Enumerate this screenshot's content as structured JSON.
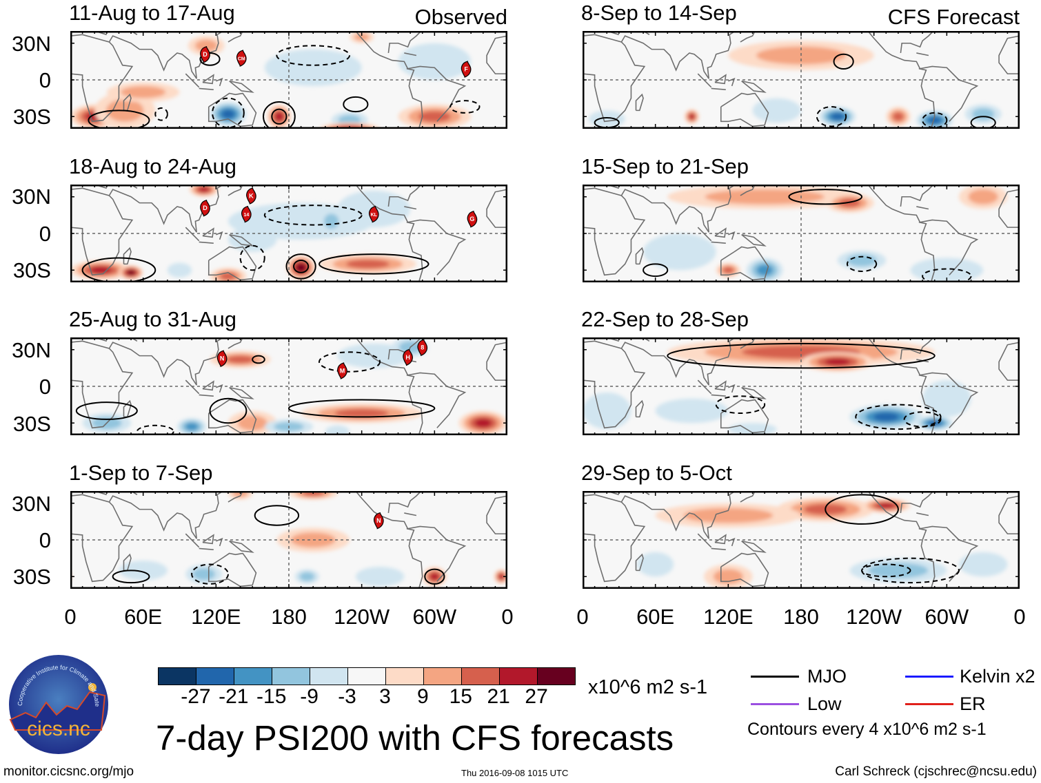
{
  "main_title": "7-day PSI200 with CFS forecasts",
  "units": "x10^6 m2 s-1",
  "contours_note": "Contours every 4 x10^6 m2 s-1",
  "footer": {
    "url": "monitor.cicsnc.org/mjo",
    "timestamp": "Thu 2016-09-08 1015 UTC",
    "author": "Carl Schreck (cjschrec@ncsu.edu)"
  },
  "logo": {
    "text": "cics.nc",
    "arc_text": "Cooperative Institute for Climate and Satellites"
  },
  "legend": [
    {
      "label": "MJO",
      "color": "#000000"
    },
    {
      "label": "Kelvin x2",
      "color": "#1a1aff"
    },
    {
      "label": "Low",
      "color": "#9b4fe0"
    },
    {
      "label": "ER",
      "color": "#e0201b"
    }
  ],
  "colorbar": {
    "colors": [
      "#0b3563",
      "#2166ac",
      "#4393c3",
      "#92c5de",
      "#d1e5f0",
      "#f7f7f7",
      "#fddbc7",
      "#f4a582",
      "#d6604d",
      "#b2182b",
      "#67001f"
    ],
    "labels": [
      "-27",
      "-21",
      "-15",
      "-9",
      "-3",
      "3",
      "9",
      "15",
      "21",
      "27"
    ]
  },
  "axes": {
    "lat_labels": [
      "30N",
      "0",
      "30S"
    ],
    "lon_labels": [
      "0",
      "60E",
      "120E",
      "180",
      "120W",
      "60W",
      "0"
    ]
  },
  "chart_data": {
    "type": "map",
    "variable": "200-hPa streamfunction anomaly (x10^6 m2 s-1)",
    "lon_range": [
      0,
      360
    ],
    "lat_range": [
      -40,
      40
    ],
    "panels": [
      {
        "title": "11-Aug to 17-Aug",
        "tag": "Observed",
        "blobs": [
          [
            20,
            -30,
            25,
            20,
            10
          ],
          [
            45,
            -25,
            12,
            25,
            15
          ],
          [
            130,
            -28,
            -27,
            15,
            10
          ],
          [
            172,
            -30,
            21,
            10,
            10
          ],
          [
            230,
            -33,
            -15,
            15,
            7
          ],
          [
            300,
            -30,
            15,
            30,
            10
          ],
          [
            230,
            -40,
            21,
            25,
            5
          ],
          [
            112,
            28,
            12,
            15,
            8
          ],
          [
            200,
            10,
            -9,
            40,
            15
          ],
          [
            300,
            15,
            -9,
            30,
            15
          ],
          [
            60,
            -10,
            9,
            30,
            8
          ],
          [
            240,
            35,
            9,
            10,
            5
          ]
        ],
        "contours": [
          [
            115,
            17,
            8,
            5,
            1
          ],
          [
            172,
            -30,
            13,
            12,
            1
          ],
          [
            172,
            -30,
            6,
            6,
            1
          ],
          [
            130,
            -27,
            13,
            12,
            -1
          ],
          [
            235,
            -20,
            10,
            6,
            1
          ],
          [
            325,
            -22,
            12,
            5,
            -1
          ],
          [
            40,
            -33,
            25,
            8,
            1
          ],
          [
            75,
            -28,
            5,
            5,
            -1
          ],
          [
            200,
            20,
            30,
            8,
            -1
          ]
        ],
        "storms": [
          {
            "lon": 111,
            "lat": 21,
            "label": "D"
          },
          {
            "lon": 141,
            "lat": 18,
            "label": "CM"
          },
          {
            "lon": 326,
            "lat": 9,
            "label": "F"
          }
        ]
      },
      {
        "title": "18-Aug to 24-Aug",
        "tag": "",
        "blobs": [
          [
            25,
            -30,
            21,
            25,
            8
          ],
          [
            50,
            -32,
            27,
            10,
            6
          ],
          [
            130,
            -35,
            15,
            15,
            7
          ],
          [
            190,
            -28,
            27,
            12,
            10
          ],
          [
            245,
            -25,
            15,
            40,
            8
          ],
          [
            190,
            10,
            -9,
            60,
            15
          ],
          [
            250,
            20,
            -9,
            30,
            15
          ],
          [
            110,
            36,
            21,
            12,
            6
          ],
          [
            150,
            -5,
            -9,
            20,
            10
          ],
          [
            215,
            10,
            -15,
            10,
            10
          ],
          [
            90,
            -30,
            -9,
            10,
            6
          ]
        ],
        "contours": [
          [
            40,
            -30,
            30,
            10,
            1
          ],
          [
            190,
            -27,
            12,
            10,
            1
          ],
          [
            190,
            -27,
            6,
            5,
            1
          ],
          [
            250,
            -25,
            45,
            8,
            1
          ],
          [
            200,
            15,
            40,
            8,
            -1
          ],
          [
            150,
            -20,
            10,
            10,
            -1
          ]
        ],
        "storms": [
          {
            "lon": 111,
            "lat": 21,
            "label": "D"
          },
          {
            "lon": 149,
            "lat": 31,
            "label": "K"
          },
          {
            "lon": 145,
            "lat": 16,
            "label": "14"
          },
          {
            "lon": 250,
            "lat": 16,
            "label": "KL"
          },
          {
            "lon": 331,
            "lat": 12,
            "label": "G"
          }
        ]
      },
      {
        "title": "25-Aug to 31-Aug",
        "tag": "",
        "blobs": [
          [
            30,
            -30,
            -15,
            20,
            8
          ],
          [
            100,
            -33,
            -21,
            12,
            7
          ],
          [
            150,
            -30,
            9,
            20,
            10
          ],
          [
            180,
            -33,
            -15,
            20,
            6
          ],
          [
            240,
            -22,
            15,
            50,
            8
          ],
          [
            340,
            -30,
            21,
            20,
            10
          ],
          [
            140,
            22,
            15,
            25,
            7
          ],
          [
            250,
            25,
            -9,
            30,
            10
          ],
          [
            280,
            32,
            -15,
            15,
            8
          ],
          [
            220,
            -37,
            -9,
            10,
            5
          ]
        ],
        "contours": [
          [
            30,
            -20,
            25,
            7,
            1
          ],
          [
            130,
            -20,
            15,
            10,
            1
          ],
          [
            240,
            -18,
            60,
            7,
            1
          ],
          [
            70,
            -37,
            15,
            5,
            -1
          ],
          [
            230,
            20,
            25,
            8,
            -1
          ],
          [
            155,
            22,
            5,
            3,
            1
          ]
        ],
        "storms": [
          {
            "lon": 125,
            "lat": 23,
            "label": "N"
          },
          {
            "lon": 224,
            "lat": 13,
            "label": "M"
          },
          {
            "lon": 278,
            "lat": 24,
            "label": "H"
          },
          {
            "lon": 290,
            "lat": 32,
            "label": "8"
          }
        ]
      },
      {
        "title": "1-Sep to 7-Sep",
        "tag": "",
        "blobs": [
          [
            200,
            38,
            15,
            20,
            5
          ],
          [
            140,
            38,
            9,
            10,
            5
          ],
          [
            110,
            -28,
            -15,
            15,
            8
          ],
          [
            195,
            -30,
            -15,
            10,
            6
          ],
          [
            300,
            -30,
            21,
            10,
            8
          ],
          [
            355,
            -30,
            21,
            6,
            6
          ],
          [
            200,
            0,
            9,
            30,
            10
          ],
          [
            60,
            -25,
            -9,
            20,
            8
          ],
          [
            255,
            -30,
            -9,
            20,
            8
          ]
        ],
        "contours": [
          [
            170,
            20,
            18,
            8,
            1
          ],
          [
            300,
            -30,
            8,
            6,
            1
          ],
          [
            115,
            -28,
            15,
            8,
            -1
          ],
          [
            50,
            -30,
            15,
            5,
            1
          ]
        ],
        "storms": [
          {
            "lon": 254,
            "lat": 16,
            "label": "N"
          }
        ]
      },
      {
        "title": "8-Sep to 14-Sep",
        "tag": "CFS Forecast",
        "blobs": [
          [
            90,
            -30,
            21,
            6,
            6
          ],
          [
            160,
            -25,
            -9,
            20,
            10
          ],
          [
            210,
            -30,
            -27,
            15,
            8
          ],
          [
            290,
            -33,
            -27,
            15,
            8
          ],
          [
            330,
            -28,
            -15,
            15,
            8
          ],
          [
            180,
            20,
            9,
            60,
            12
          ],
          [
            250,
            -5,
            -3,
            40,
            10
          ],
          [
            20,
            -32,
            -9,
            15,
            7
          ],
          [
            260,
            -30,
            15,
            10,
            8
          ]
        ],
        "contours": [
          [
            205,
            -30,
            12,
            8,
            -1
          ],
          [
            290,
            -33,
            10,
            6,
            -1
          ],
          [
            215,
            15,
            8,
            6,
            1
          ],
          [
            20,
            -35,
            10,
            4,
            1
          ],
          [
            330,
            -35,
            10,
            5,
            1
          ]
        ],
        "storms": []
      },
      {
        "title": "15-Sep to 21-Sep",
        "tag": "",
        "blobs": [
          [
            150,
            30,
            9,
            80,
            10
          ],
          [
            220,
            25,
            15,
            20,
            8
          ],
          [
            80,
            -15,
            -9,
            30,
            15
          ],
          [
            150,
            -30,
            -21,
            15,
            10
          ],
          [
            230,
            -22,
            -15,
            20,
            8
          ],
          [
            300,
            -30,
            -9,
            30,
            10
          ],
          [
            120,
            -30,
            15,
            10,
            6
          ],
          [
            330,
            30,
            9,
            20,
            10
          ]
        ],
        "contours": [
          [
            200,
            30,
            30,
            6,
            1
          ],
          [
            230,
            -25,
            12,
            6,
            -1
          ],
          [
            300,
            -35,
            20,
            6,
            -1
          ],
          [
            60,
            -30,
            10,
            5,
            1
          ]
        ],
        "storms": []
      },
      {
        "title": "22-Sep to 28-Sep",
        "tag": "",
        "blobs": [
          [
            180,
            28,
            15,
            110,
            12
          ],
          [
            210,
            20,
            21,
            30,
            8
          ],
          [
            250,
            -25,
            -27,
            30,
            10
          ],
          [
            290,
            -30,
            -27,
            15,
            6
          ],
          [
            90,
            -20,
            -9,
            30,
            10
          ],
          [
            300,
            -10,
            -9,
            20,
            15
          ],
          [
            20,
            -20,
            -9,
            20,
            15
          ],
          [
            140,
            -35,
            -9,
            20,
            5
          ]
        ],
        "contours": [
          [
            180,
            25,
            110,
            10,
            1
          ],
          [
            260,
            -25,
            35,
            10,
            -1
          ],
          [
            280,
            -27,
            15,
            6,
            -1
          ],
          [
            130,
            -15,
            20,
            7,
            -1
          ]
        ],
        "storms": []
      },
      {
        "title": "29-Sep to 5-Oct",
        "tag": "",
        "blobs": [
          [
            200,
            25,
            15,
            40,
            10
          ],
          [
            250,
            28,
            21,
            20,
            6
          ],
          [
            120,
            20,
            9,
            60,
            10
          ],
          [
            260,
            -25,
            -15,
            40,
            10
          ],
          [
            60,
            -20,
            -9,
            15,
            10
          ],
          [
            120,
            -30,
            9,
            20,
            10
          ],
          [
            330,
            -20,
            -9,
            20,
            10
          ]
        ],
        "contours": [
          [
            230,
            25,
            30,
            12,
            1
          ],
          [
            270,
            -25,
            40,
            10,
            -1
          ],
          [
            250,
            -25,
            20,
            5,
            -1
          ]
        ],
        "storms": []
      }
    ]
  }
}
